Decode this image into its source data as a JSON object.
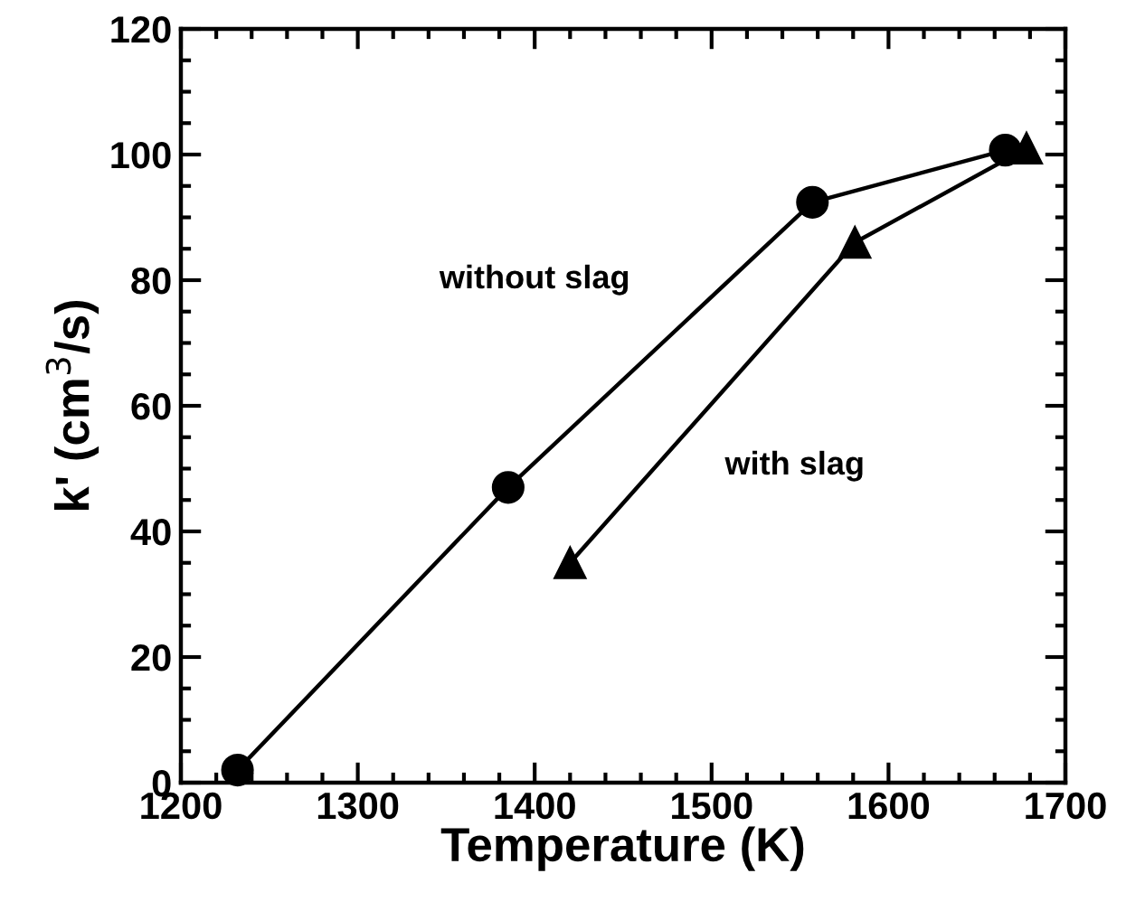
{
  "chart_data": {
    "type": "line",
    "xlabel": "Temperature (K)",
    "ylabel": "k' (cm$^{3}$/s)",
    "xlim": [
      1200,
      1700
    ],
    "xticks": [
      1200,
      1300,
      1400,
      1500,
      1600,
      1700
    ],
    "ylim": [
      0,
      120
    ],
    "yticks": [
      0,
      20,
      40,
      60,
      80,
      100,
      120
    ],
    "grid": false,
    "legend": false,
    "line_style": "solid",
    "series": [
      {
        "x": [
          1232,
          1385,
          1557,
          1666
        ],
        "values": [
          2,
          47,
          92.4,
          100.7
        ],
        "color": "#000000",
        "marker": "circle"
      },
      {
        "x": [
          1420,
          1581,
          1678
        ],
        "values": [
          35,
          86,
          101
        ],
        "color": "#000000",
        "marker": "triangle"
      }
    ],
    "annotations": [
      "without slag",
      "with slag"
    ]
  }
}
